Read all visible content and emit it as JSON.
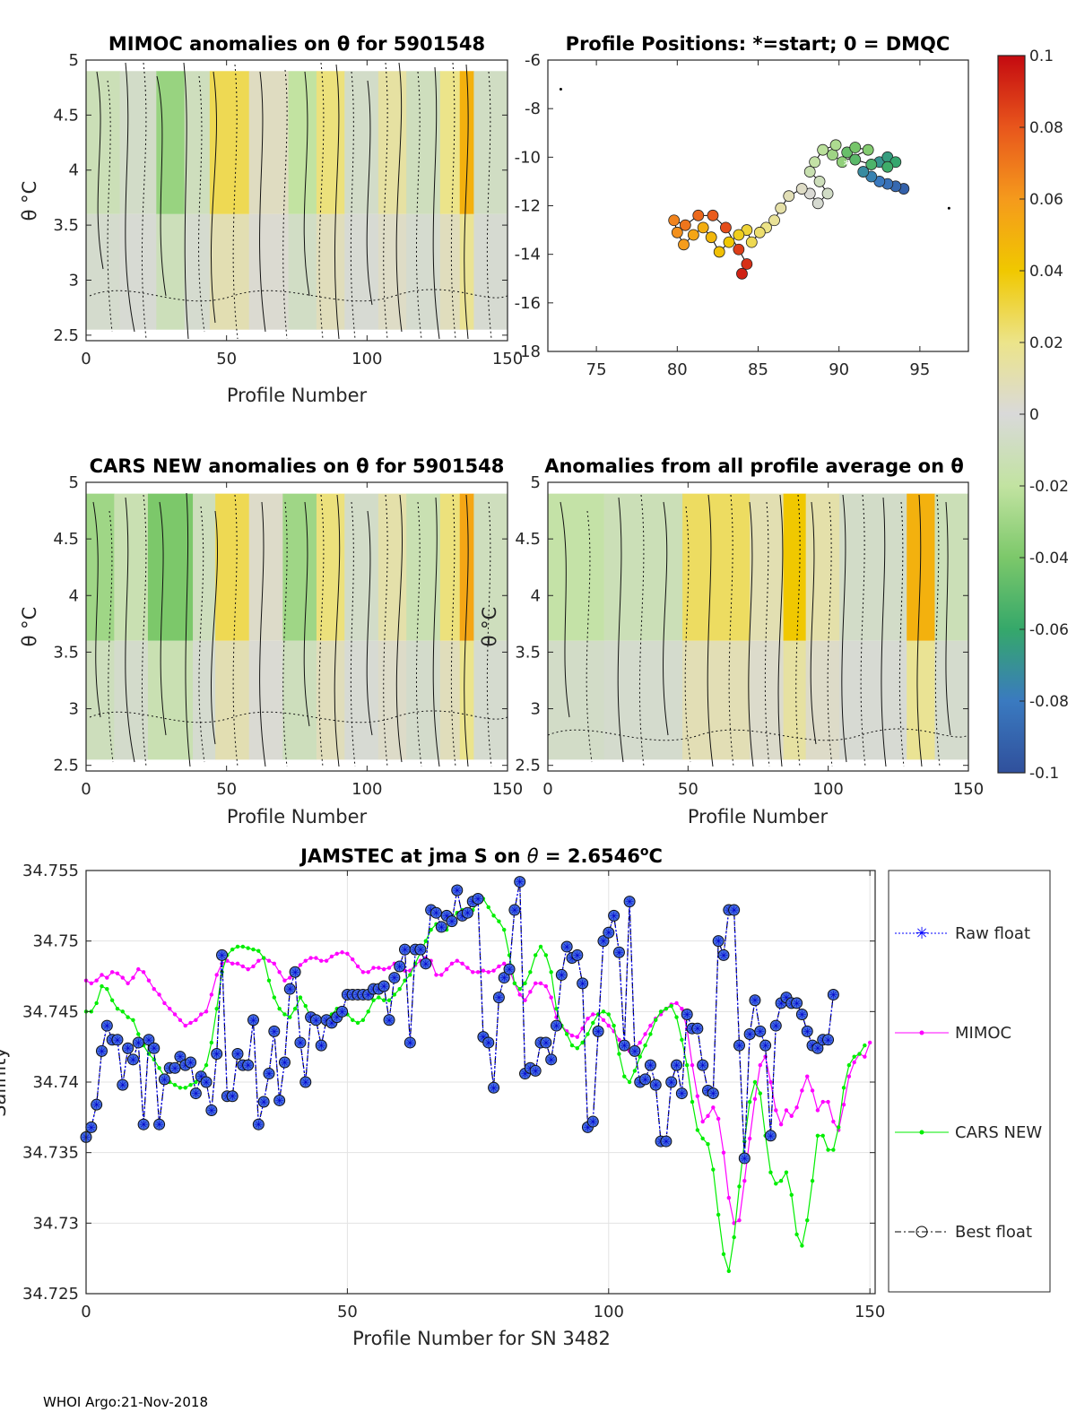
{
  "footer": "WHOI Argo:21-Nov-2018",
  "colors": {
    "raw": "#0000ff",
    "mimoc": "#ff00ff",
    "cars": "#00ee00",
    "best": "#000000",
    "marker_fill": "#4169e1"
  },
  "chart_data": [
    {
      "id": "mimoc",
      "type": "heatmap",
      "title": "MIMOC anomalies on θ  for 5901548",
      "xlabel": "Profile Number",
      "ylabel": "θ °C",
      "xlim": [
        0,
        150
      ],
      "ylim": [
        2.45,
        5
      ],
      "xticks": [
        0,
        50,
        100,
        150
      ],
      "yticks": [
        2.5,
        3,
        3.5,
        4,
        4.5,
        5
      ],
      "bands": [
        {
          "x0": 0,
          "x1": 12,
          "value": -0.012
        },
        {
          "x0": 12,
          "x1": 25,
          "value": -0.006
        },
        {
          "x0": 25,
          "x1": 35,
          "value": -0.032
        },
        {
          "x0": 35,
          "x1": 44,
          "value": -0.01
        },
        {
          "x0": 44,
          "x1": 58,
          "value": 0.028
        },
        {
          "x0": 58,
          "x1": 72,
          "value": 0.006
        },
        {
          "x0": 72,
          "x1": 82,
          "value": -0.02
        },
        {
          "x0": 82,
          "x1": 92,
          "value": 0.022
        },
        {
          "x0": 92,
          "x1": 104,
          "value": -0.006
        },
        {
          "x0": 104,
          "x1": 114,
          "value": 0.014
        },
        {
          "x0": 114,
          "x1": 126,
          "value": -0.01
        },
        {
          "x0": 126,
          "x1": 133,
          "value": 0.02
        },
        {
          "x0": 133,
          "x1": 138,
          "value": 0.05
        },
        {
          "x0": 138,
          "x1": 150,
          "value": -0.008
        }
      ]
    },
    {
      "id": "positions",
      "type": "scatter",
      "title": "Profile Positions: *=start; 0 = DMQC",
      "xlabel": "",
      "ylabel": "",
      "xlim": [
        72,
        98
      ],
      "ylim": [
        -18,
        -6
      ],
      "xticks": [
        75,
        80,
        85,
        90,
        95
      ],
      "yticks": [
        -18,
        -16,
        -14,
        -12,
        -10,
        -8,
        -6
      ],
      "path": [
        [
          94,
          -11.3
        ],
        [
          93.5,
          -11.2
        ],
        [
          93,
          -11.1
        ],
        [
          92.5,
          -11
        ],
        [
          92,
          -10.8
        ],
        [
          91.5,
          -10.6
        ],
        [
          92.5,
          -10.2
        ],
        [
          93,
          -10
        ],
        [
          93.5,
          -10.2
        ],
        [
          93,
          -10.4
        ],
        [
          92,
          -10.3
        ],
        [
          91,
          -10.1
        ],
        [
          90.5,
          -9.8
        ],
        [
          91,
          -9.6
        ],
        [
          91.8,
          -9.7
        ],
        [
          90.2,
          -10.2
        ],
        [
          89.6,
          -9.9
        ],
        [
          89.8,
          -9.5
        ],
        [
          89,
          -9.7
        ],
        [
          88.5,
          -10.2
        ],
        [
          88.2,
          -10.6
        ],
        [
          88.8,
          -11
        ],
        [
          89.3,
          -11.5
        ],
        [
          88.7,
          -11.9
        ],
        [
          88.2,
          -11.5
        ],
        [
          87.7,
          -11.3
        ],
        [
          86.9,
          -11.6
        ],
        [
          86.4,
          -12.1
        ],
        [
          86.0,
          -12.6
        ],
        [
          85.5,
          -12.9
        ],
        [
          85.1,
          -13.1
        ],
        [
          84.6,
          -13.5
        ],
        [
          84.3,
          -13.0
        ],
        [
          83.8,
          -13.2
        ],
        [
          83.2,
          -13.5
        ],
        [
          82.6,
          -13.9
        ],
        [
          82.1,
          -13.3
        ],
        [
          81.6,
          -12.9
        ],
        [
          81.0,
          -13.2
        ],
        [
          80.4,
          -13.6
        ],
        [
          80.0,
          -13.1
        ],
        [
          79.8,
          -12.6
        ],
        [
          80.5,
          -12.8
        ],
        [
          81.3,
          -12.4
        ],
        [
          82.2,
          -12.4
        ],
        [
          83.0,
          -12.9
        ],
        [
          83.8,
          -13.8
        ],
        [
          84.3,
          -14.4
        ],
        [
          84.0,
          -14.8
        ]
      ],
      "extras": [
        [
          72.8,
          -7.2
        ],
        [
          96.8,
          -12.1
        ]
      ],
      "start": [
        90.5,
        -10.3
      ]
    },
    {
      "id": "cars",
      "type": "heatmap",
      "title": "CARS NEW anomalies on θ for 5901548",
      "xlabel": "Profile Number",
      "ylabel": "θ °C",
      "xlim": [
        0,
        150
      ],
      "ylim": [
        2.45,
        5
      ],
      "xticks": [
        0,
        50,
        100,
        150
      ],
      "yticks": [
        2.5,
        3,
        3.5,
        4,
        4.5,
        5
      ],
      "bands": [
        {
          "x0": 0,
          "x1": 10,
          "value": -0.03
        },
        {
          "x0": 10,
          "x1": 22,
          "value": -0.014
        },
        {
          "x0": 22,
          "x1": 38,
          "value": -0.04
        },
        {
          "x0": 38,
          "x1": 46,
          "value": -0.01
        },
        {
          "x0": 46,
          "x1": 58,
          "value": 0.028
        },
        {
          "x0": 58,
          "x1": 70,
          "value": 0.004
        },
        {
          "x0": 70,
          "x1": 82,
          "value": -0.03
        },
        {
          "x0": 82,
          "x1": 92,
          "value": 0.022
        },
        {
          "x0": 92,
          "x1": 104,
          "value": -0.006
        },
        {
          "x0": 104,
          "x1": 114,
          "value": 0.012
        },
        {
          "x0": 114,
          "x1": 126,
          "value": -0.014
        },
        {
          "x0": 126,
          "x1": 133,
          "value": 0.022
        },
        {
          "x0": 133,
          "x1": 138,
          "value": 0.055
        },
        {
          "x0": 138,
          "x1": 150,
          "value": -0.01
        }
      ]
    },
    {
      "id": "allavg",
      "type": "heatmap",
      "title": "Anomalies from all profile average on θ",
      "xlabel": "Profile Number",
      "ylabel": "θ °C",
      "xlim": [
        0,
        150
      ],
      "ylim": [
        2.45,
        5
      ],
      "xticks": [
        0,
        50,
        100,
        150
      ],
      "yticks": [
        2.5,
        3,
        3.5,
        4,
        4.5,
        5
      ],
      "bands": [
        {
          "x0": 0,
          "x1": 20,
          "value": -0.018
        },
        {
          "x0": 20,
          "x1": 48,
          "value": -0.012
        },
        {
          "x0": 48,
          "x1": 72,
          "value": 0.026
        },
        {
          "x0": 72,
          "x1": 84,
          "value": 0.01
        },
        {
          "x0": 84,
          "x1": 92,
          "value": 0.04
        },
        {
          "x0": 92,
          "x1": 104,
          "value": 0.012
        },
        {
          "x0": 104,
          "x1": 128,
          "value": -0.006
        },
        {
          "x0": 128,
          "x1": 138,
          "value": 0.05
        },
        {
          "x0": 138,
          "x1": 150,
          "value": -0.012
        }
      ]
    },
    {
      "id": "colorbar",
      "type": "heatmap",
      "title": "",
      "ylim": [
        -0.1,
        0.1
      ],
      "ticks": [
        -0.1,
        -0.08,
        -0.06,
        -0.04,
        -0.02,
        0,
        0.02,
        0.04,
        0.06,
        0.08,
        0.1
      ],
      "tick_labels": [
        "-0.1",
        "-0.08",
        "-0.06",
        "-0.04",
        "-0.02",
        "0",
        "0.02",
        "0.04",
        "0.06",
        "0.08",
        "0.1"
      ],
      "stops": [
        "#30509c",
        "#3a7ac0",
        "#35a86a",
        "#7cc86a",
        "#c2e3a1",
        "#d9d9d9",
        "#ece48a",
        "#f0c800",
        "#f59a1c",
        "#e8561c",
        "#c40a10"
      ]
    },
    {
      "id": "salinity",
      "type": "line",
      "title": "JAMSTEC at jma S on θ = 2.6546°C",
      "title_parts": [
        "JAMSTEC at jma S on ",
        "θ",
        " = 2.6546",
        "o",
        "C"
      ],
      "xlabel": "Profile Number for SN 3482",
      "ylabel": "Salinity",
      "xlim": [
        0,
        151
      ],
      "ylim": [
        34.725,
        34.755
      ],
      "xticks": [
        0,
        50,
        100,
        150
      ],
      "yticks": [
        34.725,
        34.73,
        34.735,
        34.74,
        34.745,
        34.75,
        34.755
      ],
      "ytick_labels": [
        "34.725",
        "34.73",
        "34.735",
        "34.74",
        "34.745",
        "34.75",
        "34.755"
      ],
      "grid": true,
      "legend": [
        "Raw float",
        "MIMOC",
        "CARS NEW",
        "Best float"
      ],
      "series": [
        {
          "name": "MIMOC",
          "values": [
            34.7472,
            34.747,
            34.7472,
            34.7476,
            34.7474,
            34.7478,
            34.7477,
            34.7474,
            34.747,
            34.7474,
            34.748,
            34.7478,
            34.7472,
            34.7466,
            34.7462,
            34.7456,
            34.7452,
            34.7448,
            34.7444,
            34.744,
            34.7442,
            34.7444,
            34.7448,
            34.745,
            34.7462,
            34.7476,
            34.7484,
            34.7486,
            34.7484,
            34.7484,
            34.7482,
            34.748,
            34.7482,
            34.7486,
            34.7488,
            34.7486,
            34.7484,
            34.7478,
            34.7472,
            34.7474,
            34.7478,
            34.7483,
            34.7486,
            34.7488,
            34.7488,
            34.7486,
            34.7486,
            34.7489,
            34.7491,
            34.7492,
            34.7491,
            34.7487,
            34.7482,
            34.7478,
            34.7478,
            34.7481,
            34.7481,
            34.748,
            34.7481,
            34.7484,
            34.7482,
            34.7479,
            34.7479,
            34.7483,
            34.7486,
            34.7488,
            34.7486,
            34.7476,
            34.7476,
            34.748,
            34.7484,
            34.7486,
            34.7484,
            34.7481,
            34.7478,
            34.7478,
            34.7479,
            34.7478,
            34.7479,
            34.7482,
            34.7484,
            34.748,
            34.747,
            34.7462,
            34.7458,
            34.7464,
            34.747,
            34.747,
            34.7468,
            34.746,
            34.7446,
            34.744,
            34.7436,
            34.7433,
            34.7432,
            34.7438,
            34.7445,
            34.7448,
            34.7448,
            34.7444,
            34.744,
            34.7436,
            34.743,
            34.7424,
            34.7422,
            34.7424,
            34.7428,
            34.7434,
            34.744,
            34.7445,
            34.7448,
            34.7452,
            34.7455,
            34.7456,
            34.7452,
            34.7438,
            34.7412,
            34.739,
            34.7372,
            34.7376,
            34.7382,
            34.7374,
            34.735,
            34.7318,
            34.73,
            34.7302,
            34.733,
            34.736,
            34.7388,
            34.7412,
            34.7418,
            34.74,
            34.738,
            34.737,
            34.738,
            34.7376,
            34.7382,
            34.7394,
            34.7404,
            34.7394,
            34.738,
            34.7386,
            34.7386,
            34.7372,
            34.7366,
            34.7384,
            34.7404,
            34.7414,
            34.742,
            34.7418,
            34.7428
          ]
        },
        {
          "name": "CARS NEW",
          "values": [
            34.745,
            34.745,
            34.7456,
            34.7468,
            34.7466,
            34.7458,
            34.7452,
            34.745,
            34.7446,
            34.7444,
            34.7434,
            34.7426,
            34.742,
            34.7416,
            34.741,
            34.7404,
            34.74,
            34.7398,
            34.7396,
            34.7396,
            34.7398,
            34.74,
            34.7406,
            34.7412,
            34.7428,
            34.7452,
            34.7478,
            34.749,
            34.7494,
            34.7496,
            34.7496,
            34.7495,
            34.7494,
            34.7493,
            34.7488,
            34.7472,
            34.746,
            34.7452,
            34.7448,
            34.7446,
            34.7452,
            34.746,
            34.7454,
            34.7446,
            34.7444,
            34.7444,
            34.7446,
            34.7448,
            34.7452,
            34.7452,
            34.7448,
            34.7444,
            34.7442,
            34.7444,
            34.745,
            34.7458,
            34.746,
            34.7458,
            34.7458,
            34.7462,
            34.7466,
            34.7472,
            34.7476,
            34.7484,
            34.7492,
            34.75,
            34.7508,
            34.7512,
            34.751,
            34.7508,
            34.7516,
            34.752,
            34.7522,
            34.7518,
            34.7522,
            34.7528,
            34.753,
            34.7524,
            34.7518,
            34.7514,
            34.7508,
            34.749,
            34.747,
            34.7466,
            34.747,
            34.7478,
            34.749,
            34.7496,
            34.749,
            34.7478,
            34.7452,
            34.744,
            34.7434,
            34.7426,
            34.7424,
            34.7428,
            34.7434,
            34.7442,
            34.7448,
            34.745,
            34.7448,
            34.744,
            34.742,
            34.7404,
            34.74,
            34.7408,
            34.7418,
            34.7426,
            34.7434,
            34.7444,
            34.745,
            34.7452,
            34.7454,
            34.7446,
            34.743,
            34.7412,
            34.7386,
            34.7366,
            34.736,
            34.7356,
            34.7338,
            34.7306,
            34.7278,
            34.7266,
            34.729,
            34.7326,
            34.7358,
            34.7386,
            34.74,
            34.7392,
            34.7362,
            34.7336,
            34.7328,
            34.733,
            34.7336,
            34.732,
            34.7292,
            34.7284,
            34.7302,
            34.733,
            34.7362,
            34.7362,
            34.7352,
            34.7352,
            34.7368,
            34.7396,
            34.7412,
            34.7418,
            34.742,
            34.7426
          ]
        },
        {
          "name": "Best float",
          "values": [
            34.7361,
            34.7368,
            34.7384,
            34.7422,
            34.744,
            34.743,
            34.743,
            34.7398,
            34.7424,
            34.7416,
            34.7428,
            34.737,
            34.743,
            34.7424,
            34.737,
            34.7402,
            34.741,
            34.741,
            34.7418,
            34.7412,
            34.7414,
            34.7392,
            34.7404,
            34.74,
            34.738,
            34.742,
            34.749,
            34.739,
            34.739,
            34.742,
            34.7412,
            34.7412,
            34.7444,
            34.737,
            34.7386,
            34.7406,
            34.7436,
            34.7387,
            34.7414,
            34.7466,
            34.7478,
            34.7428,
            34.74,
            34.7446,
            34.7444,
            34.7426,
            34.7444,
            34.7442,
            34.7446,
            34.745,
            34.7462,
            34.7462,
            34.7462,
            34.7462,
            34.7462,
            34.7466,
            34.7466,
            34.7468,
            34.7444,
            34.7474,
            34.7482,
            34.7494,
            34.7428,
            34.7494,
            34.7494,
            34.7484,
            34.7522,
            34.752,
            34.751,
            34.7518,
            34.7514,
            34.7536,
            34.7518,
            34.752,
            34.7528,
            34.753,
            34.7432,
            34.7428,
            34.7396,
            34.746,
            34.7474,
            34.748,
            34.7522,
            34.7542,
            34.7406,
            34.741,
            34.7408,
            34.7428,
            34.7428,
            34.7416,
            34.744,
            34.7476,
            34.7496,
            34.7488,
            34.749,
            34.747,
            34.7368,
            34.7372,
            34.7436,
            34.75,
            34.7506,
            34.7518,
            34.7492,
            34.7426,
            34.7528,
            34.7422,
            34.74,
            34.7402,
            34.7412,
            34.7398,
            34.7358,
            34.7358,
            34.74,
            34.7412,
            34.7392,
            34.7448,
            34.7438,
            34.7438,
            34.7412,
            34.7394,
            34.7392,
            34.75,
            34.749,
            34.7522,
            34.7522,
            34.7426,
            34.7346,
            34.7434,
            34.7458,
            34.7436,
            34.7426,
            34.7362,
            34.744,
            34.7456,
            34.746,
            34.7456,
            34.7456,
            34.7448,
            34.7436,
            34.7426,
            34.7424,
            34.743,
            34.743,
            34.7462
          ]
        }
      ]
    }
  ]
}
